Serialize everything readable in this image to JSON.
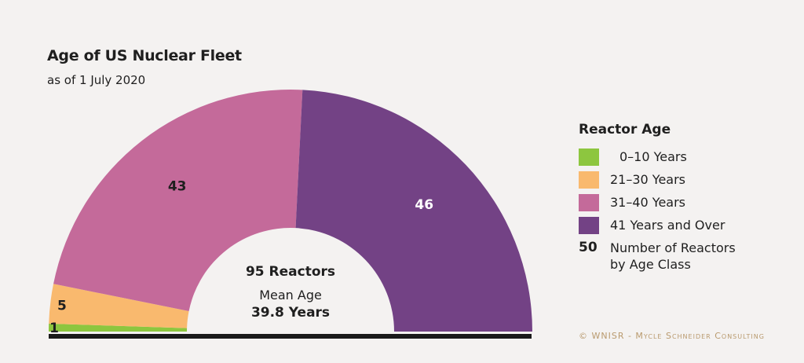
{
  "chart_data": {
    "type": "pie",
    "variant": "half-donut",
    "title": "Age of US Nuclear Fleet",
    "subtitle": "as of 1 July 2020",
    "series": [
      {
        "name": "0–10 Years",
        "value": 1,
        "color": "#8dc63f"
      },
      {
        "name": "21–30 Years",
        "value": 5,
        "color": "#f9b96e"
      },
      {
        "name": "31–40 Years",
        "value": 43,
        "color": "#c46a9a"
      },
      {
        "name": "41 Years and Over",
        "value": 46,
        "color": "#734285"
      }
    ],
    "center": {
      "total_label": "95 Reactors",
      "mean_label": "Mean Age",
      "mean_value": "39.8 Years"
    },
    "legend": {
      "title": "Reactor Age",
      "placement": "right",
      "number_sample": "50",
      "number_text_line1": "Number of Reactors",
      "number_text_line2": "by Age Class"
    }
  },
  "credit": "© WNISR - Mycle Schneider Consulting"
}
